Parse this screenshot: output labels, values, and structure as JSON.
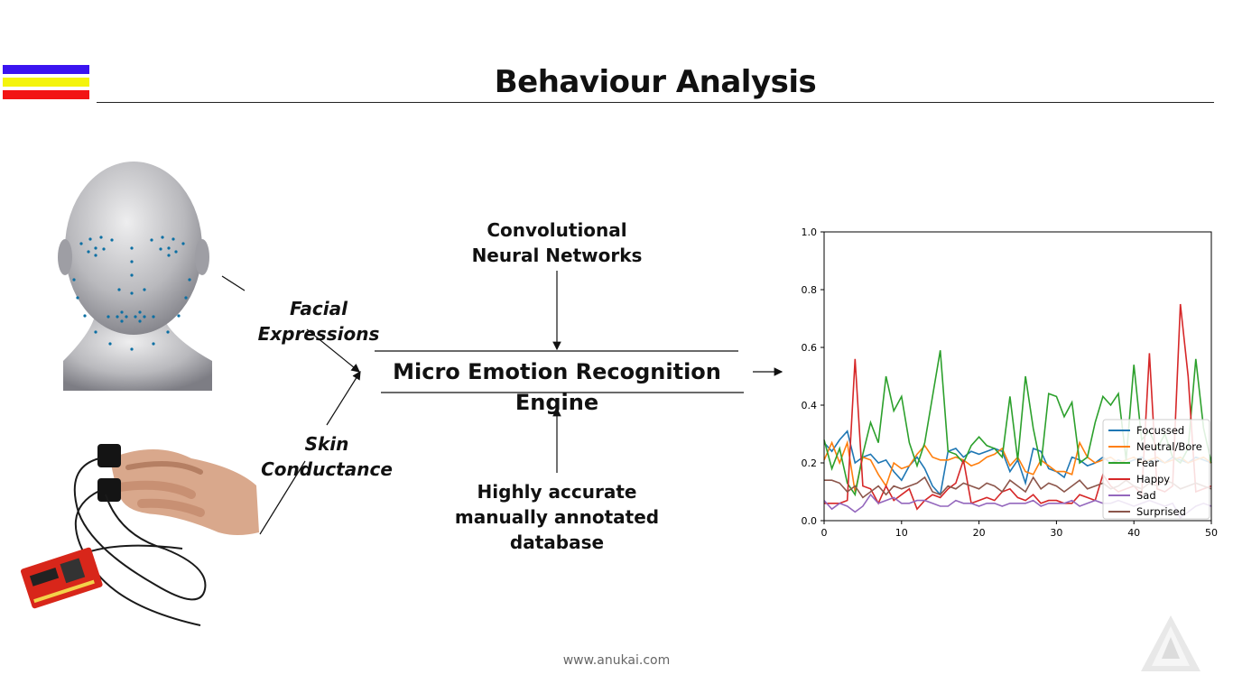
{
  "slide": {
    "title": "Behaviour Analysis",
    "footer": "www.anukai.com",
    "logo_colors": [
      "#3a14f0",
      "#f4f40c",
      "#f21414"
    ]
  },
  "diagram": {
    "inputs": {
      "facial_label_line1": "Facial",
      "facial_label_line2": "Expressions",
      "skin_label": "Skin Conductance"
    },
    "cnn_line1": "Convolutional",
    "cnn_line2": "Neural Networks",
    "engine_line1": "Micro Emotion Recognition",
    "engine_line2": "Engine",
    "db_line1": "Highly accurate",
    "db_line2": "manually annotated",
    "db_line3": "database"
  },
  "chart_data": {
    "type": "line",
    "xlim": [
      0,
      50
    ],
    "ylim": [
      0,
      1.0
    ],
    "xticks": [
      0,
      10,
      20,
      30,
      40,
      50
    ],
    "yticks": [
      0.0,
      0.2,
      0.4,
      0.6,
      0.8,
      1.0
    ],
    "ytick_labels": [
      "0.0",
      "0.2",
      "0.4",
      "0.6",
      "0.8",
      "1.0"
    ],
    "legend_position": "lower-right",
    "x": [
      0,
      1,
      2,
      3,
      4,
      5,
      6,
      7,
      8,
      9,
      10,
      11,
      12,
      13,
      14,
      15,
      16,
      17,
      18,
      19,
      20,
      21,
      22,
      23,
      24,
      25,
      26,
      27,
      28,
      29,
      30,
      31,
      32,
      33,
      34,
      35,
      36,
      37,
      38,
      39,
      40,
      41,
      42,
      43,
      44,
      45,
      46,
      47,
      48,
      49,
      50
    ],
    "series": [
      {
        "name": "Focussed",
        "color": "#1f77b4",
        "values": [
          0.27,
          0.24,
          0.28,
          0.31,
          0.2,
          0.22,
          0.23,
          0.2,
          0.21,
          0.17,
          0.14,
          0.19,
          0.22,
          0.18,
          0.12,
          0.09,
          0.24,
          0.25,
          0.22,
          0.24,
          0.23,
          0.24,
          0.25,
          0.24,
          0.17,
          0.21,
          0.13,
          0.25,
          0.24,
          0.18,
          0.17,
          0.15,
          0.22,
          0.21,
          0.19,
          0.2,
          0.22,
          0.2,
          0.21,
          0.2,
          0.21,
          0.22,
          0.2,
          0.21,
          0.2,
          0.22,
          0.21,
          0.2,
          0.22,
          0.21,
          0.2
        ]
      },
      {
        "name": "Neutral/Bore",
        "color": "#ff7f0e",
        "values": [
          0.21,
          0.27,
          0.2,
          0.27,
          0.1,
          0.22,
          0.21,
          0.16,
          0.12,
          0.2,
          0.18,
          0.19,
          0.23,
          0.26,
          0.22,
          0.21,
          0.21,
          0.22,
          0.21,
          0.19,
          0.2,
          0.22,
          0.23,
          0.25,
          0.19,
          0.22,
          0.17,
          0.16,
          0.21,
          0.19,
          0.17,
          0.17,
          0.16,
          0.27,
          0.22,
          0.2,
          0.21,
          0.22,
          0.2,
          0.21,
          0.22,
          0.2,
          0.21,
          0.22,
          0.2,
          0.21,
          0.22,
          0.2,
          0.21,
          0.22,
          0.2
        ]
      },
      {
        "name": "Fear",
        "color": "#2ca02c",
        "values": [
          0.28,
          0.18,
          0.25,
          0.13,
          0.09,
          0.23,
          0.34,
          0.27,
          0.5,
          0.38,
          0.43,
          0.27,
          0.19,
          0.27,
          0.43,
          0.59,
          0.24,
          0.23,
          0.2,
          0.26,
          0.29,
          0.26,
          0.25,
          0.22,
          0.43,
          0.21,
          0.5,
          0.32,
          0.19,
          0.44,
          0.43,
          0.36,
          0.41,
          0.2,
          0.22,
          0.34,
          0.43,
          0.4,
          0.44,
          0.21,
          0.54,
          0.28,
          0.31,
          0.25,
          0.3,
          0.22,
          0.2,
          0.25,
          0.56,
          0.32,
          0.2
        ]
      },
      {
        "name": "Happy",
        "color": "#d62728",
        "values": [
          0.06,
          0.06,
          0.06,
          0.07,
          0.56,
          0.12,
          0.11,
          0.06,
          0.12,
          0.07,
          0.09,
          0.11,
          0.04,
          0.07,
          0.09,
          0.08,
          0.11,
          0.13,
          0.21,
          0.06,
          0.07,
          0.08,
          0.07,
          0.1,
          0.11,
          0.08,
          0.07,
          0.09,
          0.06,
          0.07,
          0.07,
          0.06,
          0.06,
          0.09,
          0.08,
          0.07,
          0.16,
          0.12,
          0.1,
          0.11,
          0.12,
          0.09,
          0.58,
          0.11,
          0.1,
          0.12,
          0.75,
          0.5,
          0.1,
          0.11,
          0.12
        ]
      },
      {
        "name": "Sad",
        "color": "#9467bd",
        "values": [
          0.07,
          0.04,
          0.06,
          0.05,
          0.03,
          0.05,
          0.09,
          0.06,
          0.07,
          0.08,
          0.06,
          0.06,
          0.07,
          0.07,
          0.06,
          0.05,
          0.05,
          0.07,
          0.06,
          0.06,
          0.05,
          0.06,
          0.06,
          0.05,
          0.06,
          0.06,
          0.06,
          0.07,
          0.05,
          0.06,
          0.06,
          0.06,
          0.07,
          0.05,
          0.06,
          0.07,
          0.06,
          0.06,
          0.07,
          0.06,
          0.05,
          0.06,
          0.07,
          0.06,
          0.05,
          0.06,
          0.01,
          0.03,
          0.05,
          0.06,
          0.05
        ]
      },
      {
        "name": "Surprised",
        "color": "#8c564b",
        "values": [
          0.14,
          0.14,
          0.13,
          0.1,
          0.12,
          0.08,
          0.1,
          0.12,
          0.09,
          0.12,
          0.11,
          0.12,
          0.13,
          0.15,
          0.1,
          0.09,
          0.12,
          0.11,
          0.13,
          0.12,
          0.11,
          0.13,
          0.12,
          0.1,
          0.14,
          0.12,
          0.1,
          0.15,
          0.11,
          0.13,
          0.12,
          0.1,
          0.12,
          0.14,
          0.11,
          0.12,
          0.13,
          0.11,
          0.12,
          0.14,
          0.12,
          0.11,
          0.13,
          0.12,
          0.14,
          0.13,
          0.11,
          0.12,
          0.13,
          0.12,
          0.11
        ]
      }
    ]
  }
}
